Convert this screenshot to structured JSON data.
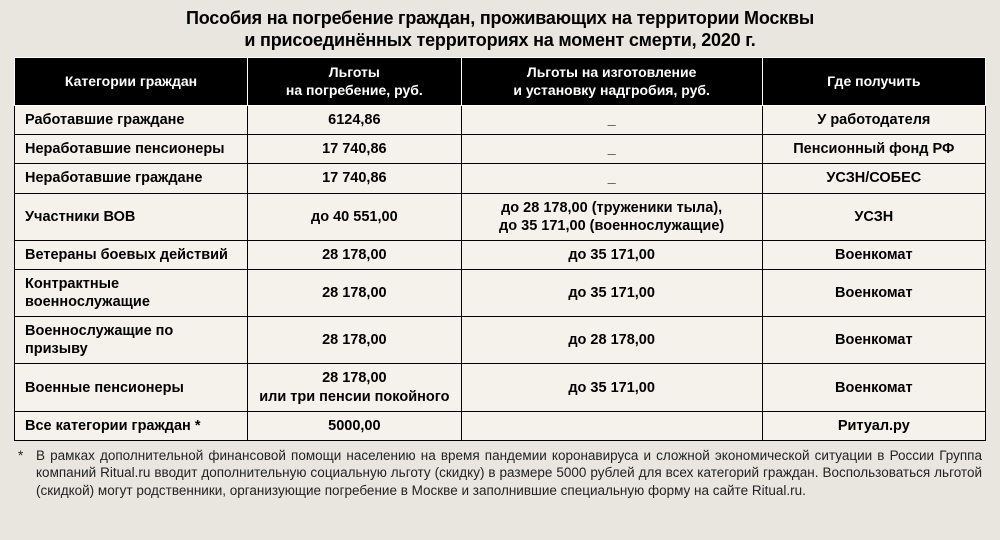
{
  "title_line1": "Пособия на погребение граждан, проживающих на территории Москвы",
  "title_line2": "и присоединённых территориях на момент смерти, 2020 г.",
  "columns": [
    "Категории граждан",
    "Льготы\nна погребение, руб.",
    "Льготы на изготовление\nи установку надгробия, руб.",
    "Где получить"
  ],
  "col_widths": [
    "24%",
    "22%",
    "31%",
    "23%"
  ],
  "rows": [
    {
      "cat": "Работавшие граждане",
      "burial": "6124,86",
      "tomb": "_",
      "where": "У работодателя"
    },
    {
      "cat": "Неработавшие пенсионеры",
      "burial": "17 740,86",
      "tomb": "_",
      "where": "Пенсионный фонд РФ"
    },
    {
      "cat": "Неработавшие граждане",
      "burial": "17 740,86",
      "tomb": "_",
      "where": "УСЗН/СОБЕС"
    },
    {
      "cat": "Участники ВОВ",
      "burial": "до 40 551,00",
      "tomb": "до 28 178,00 (труженики тыла),\nдо 35 171,00 (военнослужащие)",
      "where": "УСЗН"
    },
    {
      "cat": "Ветераны боевых действий",
      "burial": "28 178,00",
      "tomb": "до 35 171,00",
      "where": "Военкомат"
    },
    {
      "cat": "Контрактные\nвоеннослужащие",
      "burial": "28 178,00",
      "tomb": "до 35 171,00",
      "where": "Военкомат"
    },
    {
      "cat": "Военнослужащие по призыву",
      "burial": "28 178,00",
      "tomb": "до 28 178,00",
      "where": "Военкомат"
    },
    {
      "cat": "Военные пенсионеры",
      "burial": "28 178,00\nили три пенсии покойного",
      "tomb": "до 35 171,00",
      "where": "Военкомат"
    },
    {
      "cat": "Все категории граждан *",
      "burial": "5000,00",
      "tomb": "",
      "where": "Ритуал.ру"
    }
  ],
  "footnote_star": "*",
  "footnote": "В рамках дополнительной финансовой помощи населению на время пандемии коронавируса и сложной экономической ситуации в России Группа компаний Ritual.ru вводит дополнительную социальную льготу (скидку) в размере 5000 рублей для всех категорий граждан. Воспользоваться льготой (скидкой) могут родственники, организующие погребение в Москве и заполнившие специальную форму на сайте Ritual.ru.",
  "colors": {
    "page_bg": "#e8e6df",
    "table_bg": "#f4f2eb",
    "header_bg": "#000000",
    "header_fg": "#ffffff",
    "text": "#000000",
    "border": "#000000"
  }
}
